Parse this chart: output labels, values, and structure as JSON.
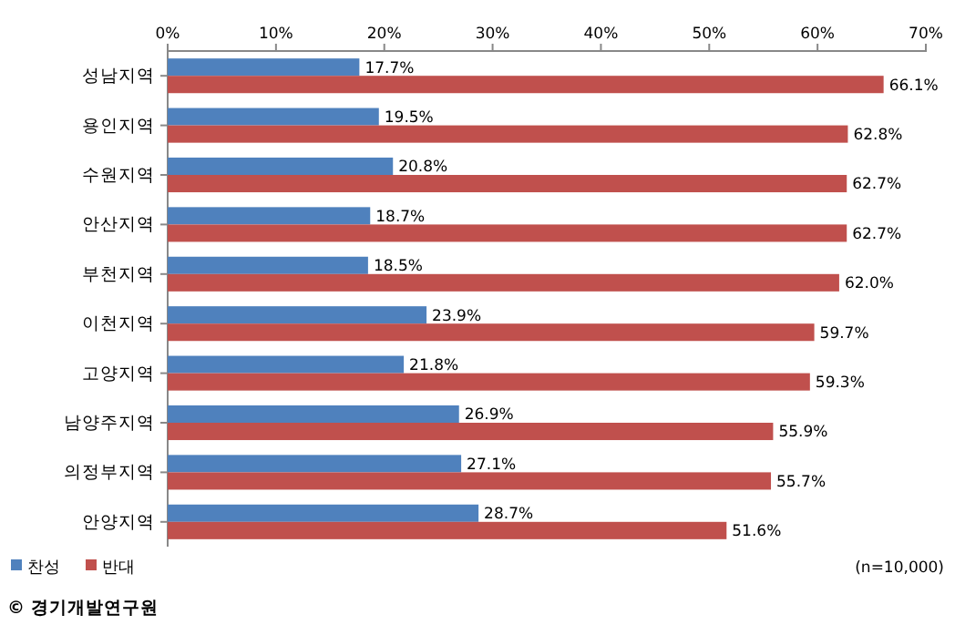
{
  "chart_data": {
    "type": "bar",
    "orientation": "horizontal",
    "categories": [
      "성남지역",
      "용인지역",
      "수원지역",
      "안산지역",
      "부천지역",
      "이천지역",
      "고양지역",
      "남양주지역",
      "의정부지역",
      "안양지역"
    ],
    "series": [
      {
        "name": "찬성",
        "color": "#4f81bd",
        "values": [
          17.7,
          19.5,
          20.8,
          18.7,
          18.5,
          23.9,
          21.8,
          26.9,
          27.1,
          28.7
        ],
        "value_labels": [
          "17.7%",
          "19.5%",
          "20.8%",
          "18.7%",
          "18.5%",
          "23.9%",
          "21.8%",
          "26.9%",
          "27.1%",
          "28.7%"
        ]
      },
      {
        "name": "반대",
        "color": "#c0504d",
        "values": [
          66.1,
          62.8,
          62.7,
          62.7,
          62.0,
          59.7,
          59.3,
          55.9,
          55.7,
          51.6
        ],
        "value_labels": [
          "66.1%",
          "62.8%",
          "62.7%",
          "62.7%",
          "62.0%",
          "59.7%",
          "59.3%",
          "55.9%",
          "55.7%",
          "51.6%"
        ]
      }
    ],
    "xlim": [
      0,
      70
    ],
    "xticks": [
      {
        "value": 0,
        "label": "0%"
      },
      {
        "value": 10,
        "label": "10%"
      },
      {
        "value": 20,
        "label": "20%"
      },
      {
        "value": 30,
        "label": "30%"
      },
      {
        "value": 40,
        "label": "40%"
      },
      {
        "value": 50,
        "label": "50%"
      },
      {
        "value": 60,
        "label": "60%"
      },
      {
        "value": 70,
        "label": "70%"
      }
    ],
    "legend": "bottom left",
    "annotations": [
      "(n=10,000)",
      "© 경기개발연구원"
    ]
  }
}
